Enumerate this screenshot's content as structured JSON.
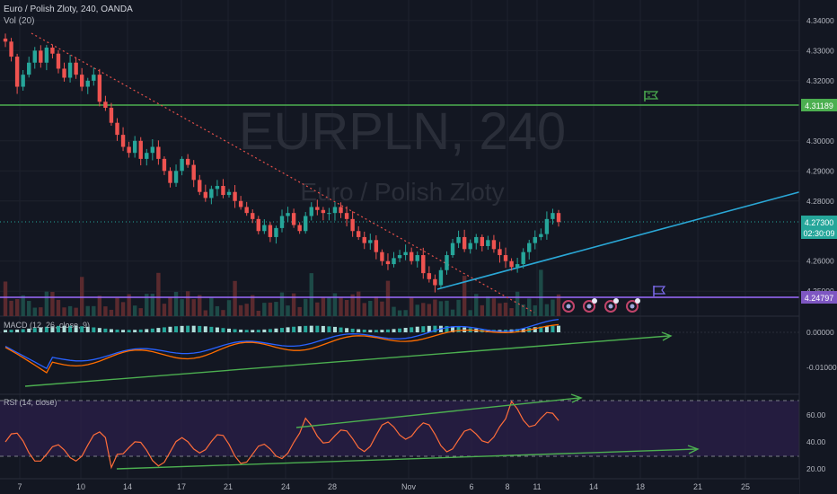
{
  "header": {
    "symbol_title": "Euro / Polish Zloty, 240, OANDA",
    "vol_label": "Vol (20)"
  },
  "watermark": {
    "ticker": "EURPLN, 240",
    "description": "Euro / Polish Zloty"
  },
  "price_axis": {
    "ticks": [
      "4.34000",
      "4.33000",
      "4.32000",
      "4.30000",
      "4.29000",
      "4.28000",
      "4.26000",
      "4.25000"
    ],
    "tick_values": [
      4.34,
      4.33,
      4.32,
      4.3,
      4.29,
      4.28,
      4.26,
      4.25
    ],
    "current_price": "4.27300",
    "countdown": "02:30:09",
    "resistance_label": "4.31189",
    "support_label": "4.24797"
  },
  "macd": {
    "label": "MACD (12, 26, close, 9)",
    "ticks": [
      "0.00000",
      "-0.01000"
    ],
    "tick_values": [
      0.0,
      -0.01
    ]
  },
  "rsi": {
    "label": "RSI (14, close)",
    "ticks": [
      "60.00",
      "40.00",
      "20.00"
    ],
    "tick_values": [
      60,
      40,
      20
    ]
  },
  "time_axis": {
    "labels": [
      "7",
      "10",
      "14",
      "17",
      "21",
      "24",
      "28",
      "Nov",
      "6",
      "8",
      "11",
      "14",
      "18",
      "21",
      "25"
    ]
  },
  "colors": {
    "background": "#131722",
    "up": "#26a69a",
    "down": "#ef5350",
    "resistance": "#4caf50",
    "support": "#9c6bff",
    "trend_up": "#2aa7d6",
    "trend_down": "#e6504a",
    "macd_line": "#2962ff",
    "signal_line": "#ff6d00",
    "rsi_line": "#ff6d3a",
    "rsi_band": "#2b1f4a",
    "arrow": "#4caf50"
  },
  "chart_data": {
    "type": "candlestick",
    "title": "Euro / Polish Zloty, 240, OANDA",
    "y_range": [
      4.245,
      4.345
    ],
    "horizontal_levels": [
      4.31189,
      4.24797
    ],
    "current_price": 4.273,
    "closes": [
      4.333,
      4.328,
      4.318,
      4.322,
      4.326,
      4.33,
      4.326,
      4.331,
      4.329,
      4.324,
      4.321,
      4.326,
      4.322,
      4.318,
      4.32,
      4.322,
      4.313,
      4.311,
      4.306,
      4.302,
      4.298,
      4.296,
      4.3,
      4.294,
      4.296,
      4.298,
      4.294,
      4.29,
      4.286,
      4.29,
      4.294,
      4.292,
      4.287,
      4.283,
      4.281,
      4.284,
      4.285,
      4.282,
      4.283,
      4.28,
      4.278,
      4.276,
      4.274,
      4.27,
      4.272,
      4.268,
      4.271,
      4.275,
      4.276,
      4.272,
      4.27,
      4.275,
      4.278,
      4.277,
      4.276,
      4.276,
      4.278,
      4.276,
      4.274,
      4.27,
      4.268,
      4.266,
      4.267,
      4.263,
      4.26,
      4.259,
      4.261,
      4.262,
      4.263,
      4.26,
      4.262,
      4.256,
      4.254,
      4.252,
      4.257,
      4.262,
      4.266,
      4.268,
      4.264,
      4.266,
      4.268,
      4.265,
      4.267,
      4.264,
      4.262,
      4.26,
      4.258,
      4.259,
      4.263,
      4.266,
      4.268,
      4.269,
      4.274,
      4.276,
      4.273
    ],
    "macd_zero": 0.0,
    "rsi_levels": [
      70,
      30
    ],
    "rsi_ticks": [
      60,
      40,
      20
    ]
  }
}
